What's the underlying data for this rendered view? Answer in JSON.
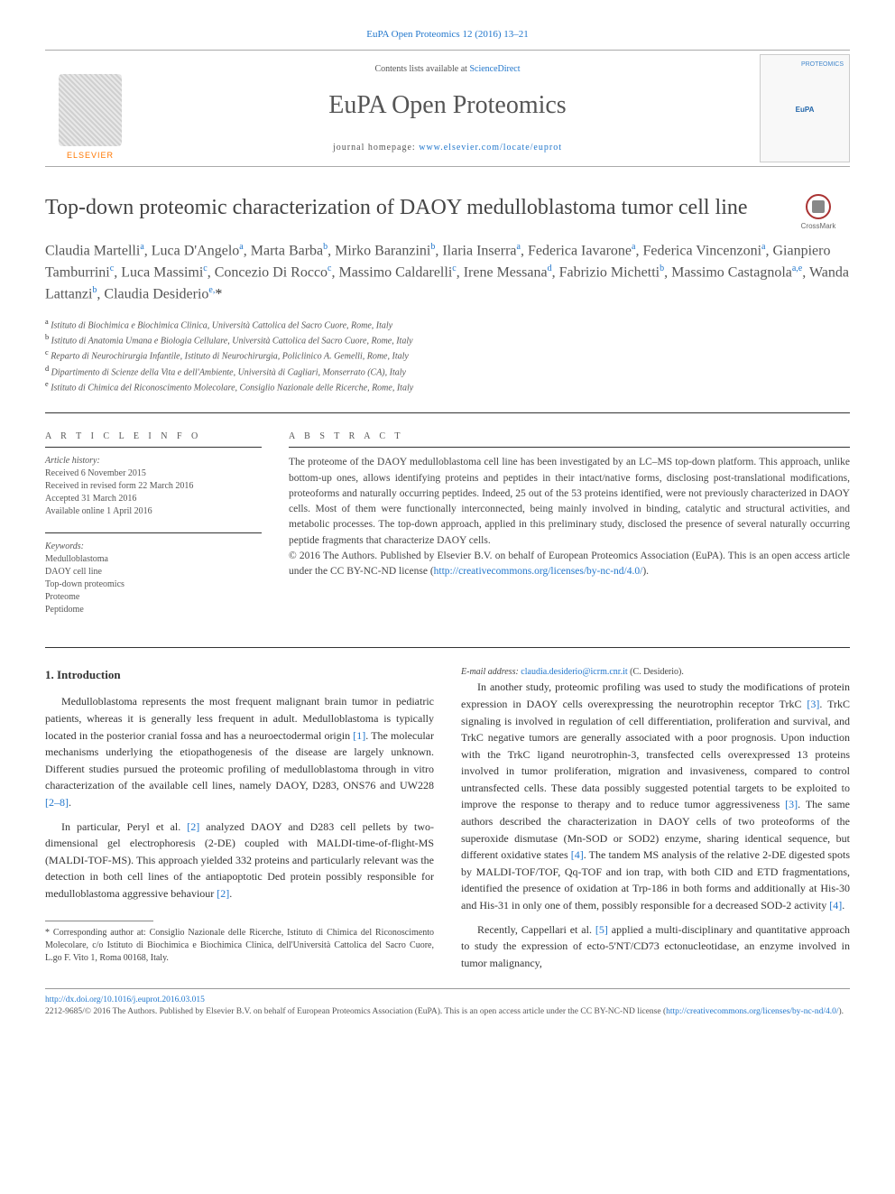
{
  "header": {
    "citation": "EuPA Open Proteomics 12 (2016) 13–21",
    "contents_prefix": "Contents lists available at ",
    "contents_link": "ScienceDirect",
    "journal_name": "EuPA Open Proteomics",
    "homepage_prefix": "journal homepage: ",
    "homepage_url": "www.elsevier.com/locate/euprot",
    "publisher": "ELSEVIER",
    "cover_label_top": "PROTEOMICS",
    "cover_label_mid": "EuPA"
  },
  "crossmark": "CrossMark",
  "title": "Top-down proteomic characterization of DAOY medulloblastoma tumor cell line",
  "authors_html": "Claudia Martelli<sup>a</sup>, Luca D'Angelo<sup>a</sup>, Marta Barba<sup>b</sup>, Mirko Baranzini<sup>b</sup>, Ilaria Inserra<sup>a</sup>, Federica Iavarone<sup>a</sup>, Federica Vincenzoni<sup>a</sup>, Gianpiero Tamburrini<sup>c</sup>, Luca Massimi<sup>c</sup>, Concezio Di Rocco<sup>c</sup>, Massimo Caldarelli<sup>c</sup>, Irene Messana<sup>d</sup>, Fabrizio Michetti<sup>b</sup>, Massimo Castagnola<sup>a,e</sup>, Wanda Lattanzi<sup>b</sup>, Claudia Desiderio<sup>e,</sup><span class='ast'>*</span>",
  "affiliations": [
    {
      "sup": "a",
      "text": "Istituto di Biochimica e Biochimica Clinica, Università Cattolica del Sacro Cuore, Rome, Italy"
    },
    {
      "sup": "b",
      "text": "Istituto di Anatomia Umana e Biologia Cellulare, Università Cattolica del Sacro Cuore, Rome, Italy"
    },
    {
      "sup": "c",
      "text": "Reparto di Neurochirurgia Infantile, Istituto di Neurochirurgia, Policlinico A. Gemelli, Rome, Italy"
    },
    {
      "sup": "d",
      "text": "Dipartimento di Scienze della Vita e dell'Ambiente, Università di Cagliari, Monserrato (CA), Italy"
    },
    {
      "sup": "e",
      "text": "Istituto di Chimica del Riconoscimento Molecolare, Consiglio Nazionale delle Ricerche, Rome, Italy"
    }
  ],
  "article_info": {
    "heading": "A R T I C L E  I N F O",
    "history_label": "Article history:",
    "history": [
      "Received 6 November 2015",
      "Received in revised form 22 March 2016",
      "Accepted 31 March 2016",
      "Available online 1 April 2016"
    ],
    "keywords_label": "Keywords:",
    "keywords": [
      "Medulloblastoma",
      "DAOY cell line",
      "Top-down proteomics",
      "Proteome",
      "Peptidome"
    ]
  },
  "abstract": {
    "heading": "A B S T R A C T",
    "text": "The proteome of the DAOY medulloblastoma cell line has been investigated by an LC–MS top-down platform. This approach, unlike bottom-up ones, allows identifying proteins and peptides in their intact/native forms, disclosing post-translational modifications, proteoforms and naturally occurring peptides. Indeed, 25 out of the 53 proteins identified, were not previously characterized in DAOY cells. Most of them were functionally interconnected, being mainly involved in binding, catalytic and structural activities, and metabolic processes. The top-down approach, applied in this preliminary study, disclosed the presence of several naturally occurring peptide fragments that characterize DAOY cells.",
    "copyright_prefix": "© 2016 The Authors. Published by Elsevier B.V. on behalf of European Proteomics Association (EuPA). This is an open access article under the CC BY-NC-ND license (",
    "license_url": "http://creativecommons.org/licenses/by-nc-nd/4.0/",
    "copyright_suffix": ")."
  },
  "sections": {
    "intro_heading": "1. Introduction",
    "p1": "Medulloblastoma represents the most frequent malignant brain tumor in pediatric patients, whereas it is generally less frequent in adult. Medulloblastoma is typically located in the posterior cranial fossa and has a neuroectodermal origin ",
    "r1": "[1]",
    "p1b": ". The molecular mechanisms underlying the etiopathogenesis of the disease are largely unknown. Different studies pursued the proteomic profiling of medulloblastoma through in vitro characterization of the available cell lines, namely DAOY, D283, ONS76 and UW228 ",
    "r2": "[2–8]",
    "p1c": ".",
    "p2a": "In particular, Peryl et al. ",
    "r3": "[2]",
    "p2b": " analyzed DAOY and D283 cell pellets by two-dimensional gel electrophoresis (2-DE) coupled with MALDI-time-of-flight-MS (MALDI-TOF-MS). This approach yielded 332 proteins and particularly relevant was the detection in both cell lines of the antiapoptotic Ded protein possibly responsible for medulloblastoma aggressive behaviour ",
    "r4": "[2]",
    "p2c": ".",
    "p3a": "In another study, proteomic profiling was used to study the modifications of protein expression in DAOY cells overexpressing the neurotrophin receptor TrkC ",
    "r5": "[3]",
    "p3b": ". TrkC signaling is involved in regulation of cell differentiation, proliferation and survival, and TrkC negative tumors are generally associated with a poor prognosis. Upon induction with the TrkC ligand neurotrophin-3, transfected cells overexpressed 13 proteins involved in tumor proliferation, migration and invasiveness, compared to control untransfected cells. These data possibly suggested potential targets to be exploited to improve the response to therapy and to reduce tumor aggressiveness ",
    "r6": "[3]",
    "p3c": ". The same authors described the characterization in DAOY cells of two proteoforms of the superoxide dismutase (Mn-SOD or SOD2) enzyme, sharing identical sequence, but different oxidative states ",
    "r7": "[4]",
    "p3d": ". The tandem MS analysis of the relative 2-DE digested spots by MALDI-TOF/TOF, Qq-TOF and ion trap, with both CID and ETD fragmentations, identified the presence of oxidation at Trp-186 in both forms and additionally at His-30 and His-31 in only one of them, possibly responsible for a decreased SOD-2 activity ",
    "r8": "[4]",
    "p3e": ".",
    "p4a": "Recently, Cappellari et al. ",
    "r9": "[5]",
    "p4b": " applied a multi-disciplinary and quantitative approach to study the expression of ecto-5'NT/CD73 ectonucleotidase, an enzyme involved in tumor malignancy,"
  },
  "footnotes": {
    "corr_label": "* Corresponding author at: Consiglio Nazionale delle Ricerche, Istituto di Chimica del Riconoscimento Molecolare, c/o Istituto di Biochimica e Biochimica Clinica, dell'Università Cattolica del Sacro Cuore, L.go F. Vito 1, Roma 00168, Italy.",
    "email_label": "E-mail address: ",
    "email": "claudia.desiderio@icrm.cnr.it",
    "email_suffix": " (C. Desiderio)."
  },
  "footer": {
    "doi": "http://dx.doi.org/10.1016/j.euprot.2016.03.015",
    "line2_prefix": "2212-9685/© 2016 The Authors. Published by Elsevier B.V. on behalf of European Proteomics Association (EuPA). This is an open access article under the CC BY-NC-ND license (",
    "line2_url": "http://creativecommons.org/licenses/by-nc-nd/4.0/",
    "line2_suffix": ")."
  },
  "colors": {
    "link": "#2277cc",
    "text": "#333333",
    "muted": "#555555",
    "orange": "#ff7700"
  }
}
